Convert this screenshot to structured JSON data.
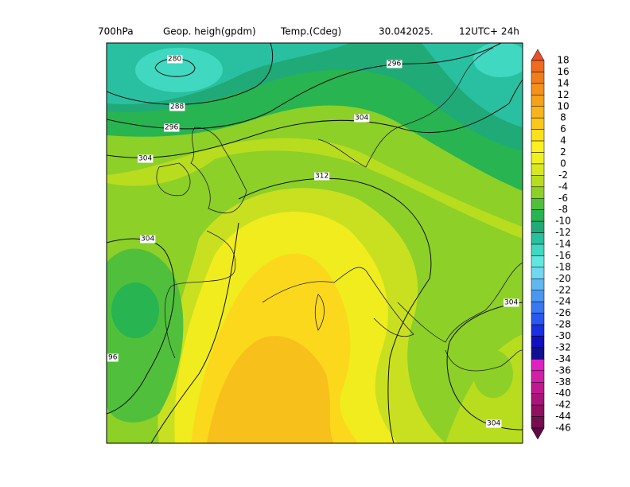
{
  "header": {
    "level": "700hPa",
    "field1": "Geop. heigh(gpdm)",
    "field2": "Temp.(Cdeg)",
    "date": "30.042025.",
    "run": "12UTC+ 24h"
  },
  "contour_labels": [
    "280",
    "288",
    "296",
    "296",
    "304",
    "304",
    "312",
    "304",
    "96",
    "304",
    "304"
  ],
  "colorbar": {
    "levels": [
      "18",
      "16",
      "14",
      "12",
      "10",
      "8",
      "6",
      "4",
      "2",
      "0",
      "-2",
      "-4",
      "-6",
      "-8",
      "-10",
      "-12",
      "-14",
      "-16",
      "-18",
      "-20",
      "-22",
      "-24",
      "-26",
      "-28",
      "-30",
      "-32",
      "-34",
      "-36",
      "-38",
      "-40",
      "-42",
      "-44",
      "-46"
    ],
    "colors": [
      "#e8502a",
      "#f06a20",
      "#f07d1a",
      "#f5901a",
      "#f5a21a",
      "#f8b41a",
      "#fbc81a",
      "#fce01c",
      "#fcf01e",
      "#f0f01e",
      "#d8e81e",
      "#b8dc1e",
      "#8cd028",
      "#50c03c",
      "#28b450",
      "#20aa78",
      "#28c0a0",
      "#40d8c0",
      "#60e8e0",
      "#70d8f0",
      "#60b8f0",
      "#4898f0",
      "#3878f0",
      "#2858f0",
      "#1830e0",
      "#1010c0",
      "#101090",
      "#e020c0",
      "#d020a8",
      "#c01890",
      "#a81478",
      "#901060",
      "#780c50",
      "#600848"
    ]
  }
}
